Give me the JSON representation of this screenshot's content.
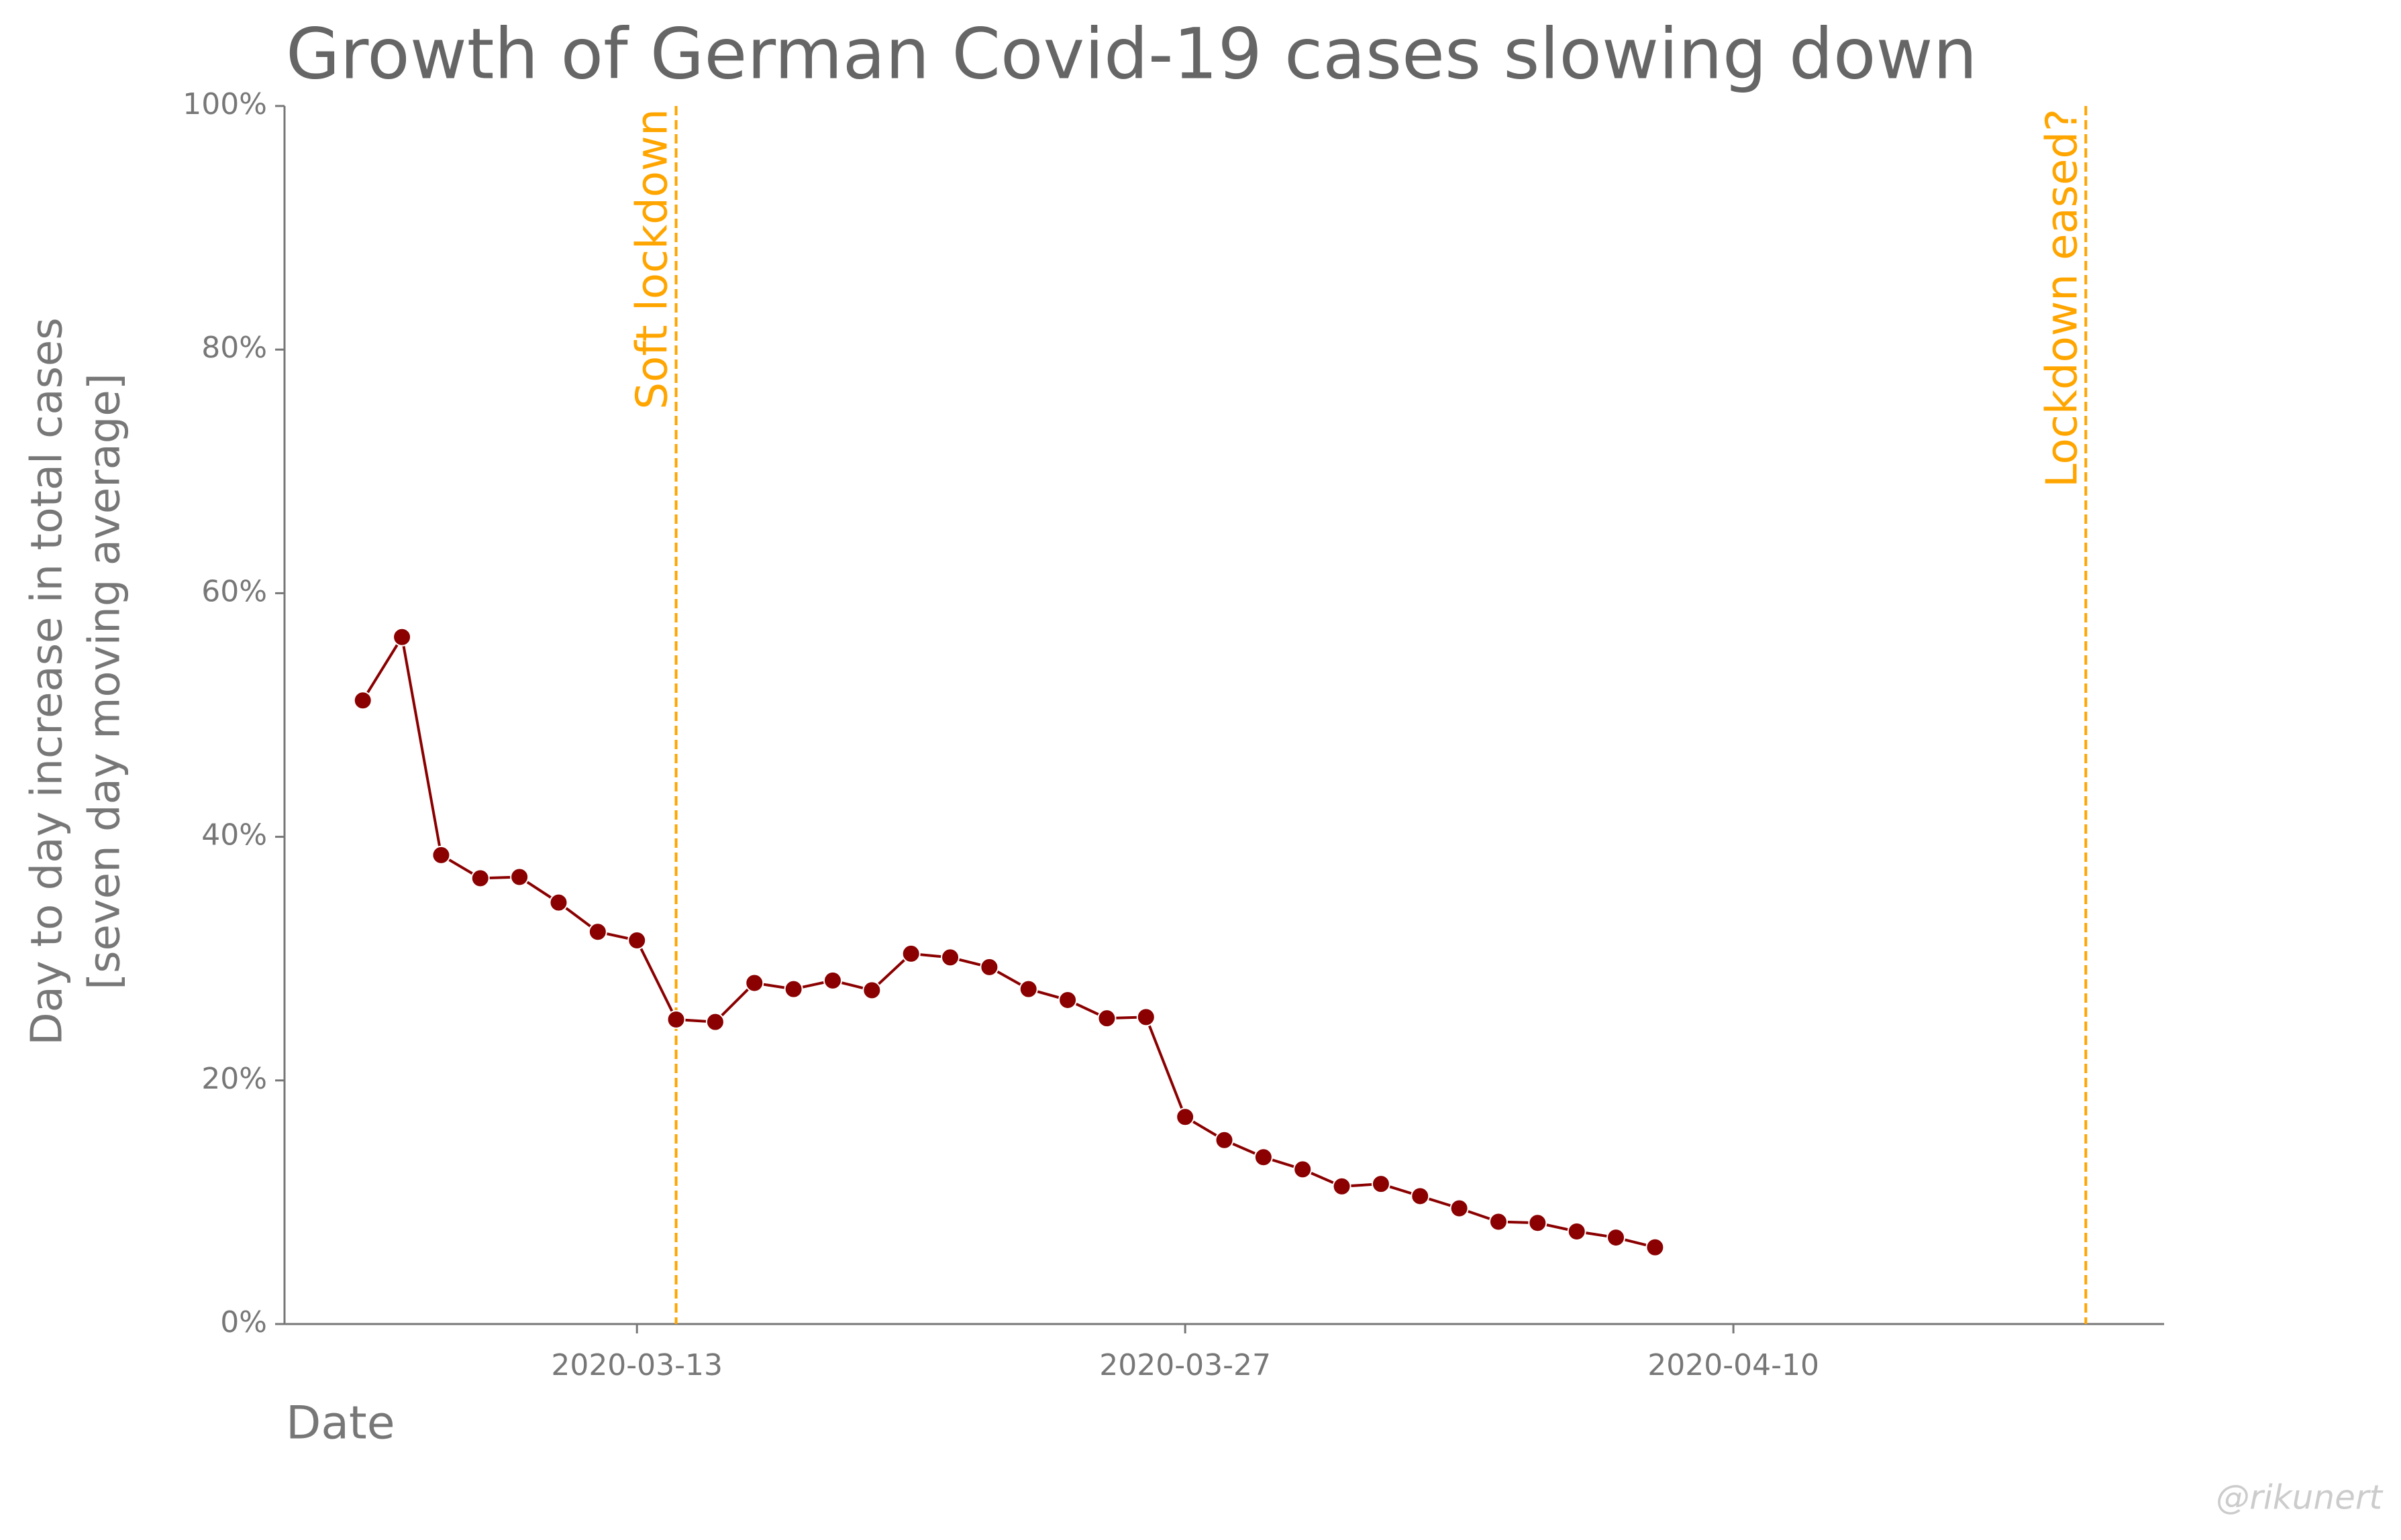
{
  "chart_data": {
    "type": "line",
    "title": "Growth of German Covid-19 cases slowing down",
    "xlabel": "Date",
    "ylabel": [
      "Day to day increase in total cases",
      "[seven day moving average]"
    ],
    "credit": "@rikunert",
    "x": [
      "2020-03-06",
      "2020-03-07",
      "2020-03-08",
      "2020-03-09",
      "2020-03-10",
      "2020-03-11",
      "2020-03-12",
      "2020-03-13",
      "2020-03-14",
      "2020-03-15",
      "2020-03-16",
      "2020-03-17",
      "2020-03-18",
      "2020-03-19",
      "2020-03-20",
      "2020-03-21",
      "2020-03-22",
      "2020-03-23",
      "2020-03-24",
      "2020-03-25",
      "2020-03-26",
      "2020-03-27",
      "2020-03-28",
      "2020-03-29",
      "2020-03-30",
      "2020-03-31",
      "2020-04-01",
      "2020-04-02",
      "2020-04-03",
      "2020-04-04",
      "2020-04-05",
      "2020-04-06",
      "2020-04-07",
      "2020-04-08"
    ],
    "series": [
      {
        "color": "#8b0000",
        "values": [
          51.2,
          56.4,
          38.5,
          36.6,
          36.7,
          34.6,
          32.2,
          31.5,
          25.0,
          24.8,
          28.0,
          27.5,
          28.2,
          27.4,
          30.4,
          30.1,
          29.3,
          27.5,
          26.6,
          25.1,
          25.2,
          17.0,
          15.1,
          13.7,
          12.7,
          11.3,
          11.5,
          10.5,
          9.5,
          8.4,
          8.3,
          7.6,
          7.1,
          6.3
        ]
      }
    ],
    "annotations": [
      {
        "x": "2020-03-14",
        "label": "Soft lockdown"
      },
      {
        "x": "2020-04-19",
        "label": "Lockdown eased?"
      }
    ],
    "annotation_color": "#ffa500",
    "xlim": [
      "2020-03-04",
      "2020-04-21"
    ],
    "xticks": [
      "2020-03-13",
      "2020-03-27",
      "2020-04-10"
    ],
    "ylim": [
      0,
      100
    ],
    "yticks": [
      {
        "value": 0,
        "label": "0%"
      },
      {
        "value": 20,
        "label": "20%"
      },
      {
        "value": 40,
        "label": "40%"
      },
      {
        "value": 60,
        "label": "60%"
      },
      {
        "value": 80,
        "label": "80%"
      },
      {
        "value": 100,
        "label": "100%"
      }
    ]
  }
}
